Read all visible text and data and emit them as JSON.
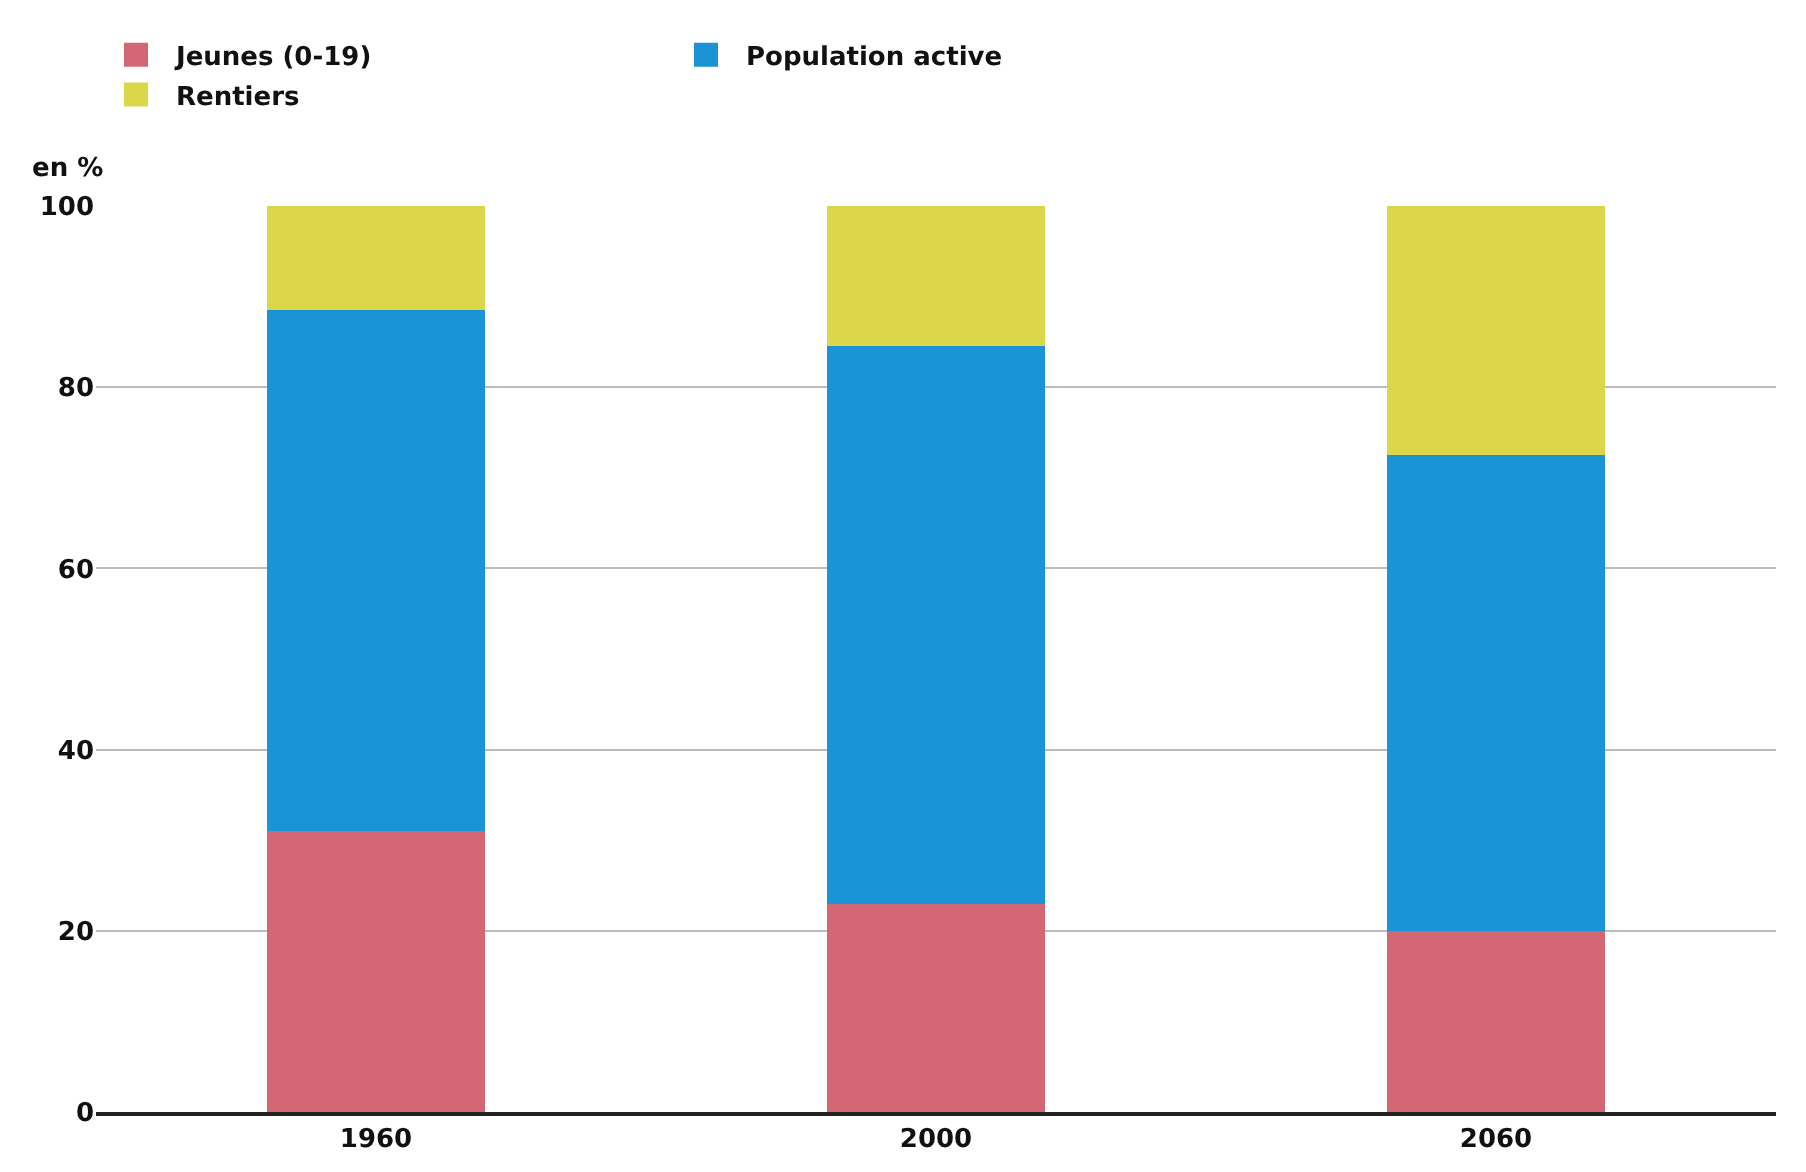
{
  "chart_data": {
    "type": "bar",
    "stacked": true,
    "ylabel": "en %",
    "categories": [
      "1960",
      "2000",
      "2060"
    ],
    "series": [
      {
        "name": "Jeunes (0-19)",
        "color": "#d36874",
        "values": [
          31,
          23,
          20
        ]
      },
      {
        "name": "Population active",
        "color": "#1a94d4",
        "values": [
          57.5,
          61.5,
          52.5
        ]
      },
      {
        "name": "Rentiers",
        "color": "#dcd64b",
        "values": [
          11.5,
          15.5,
          27.5
        ]
      }
    ],
    "ylim": [
      0,
      100
    ],
    "yticks": [
      0,
      20,
      40,
      60,
      80,
      100
    ],
    "grid": "y",
    "legend": "top"
  }
}
